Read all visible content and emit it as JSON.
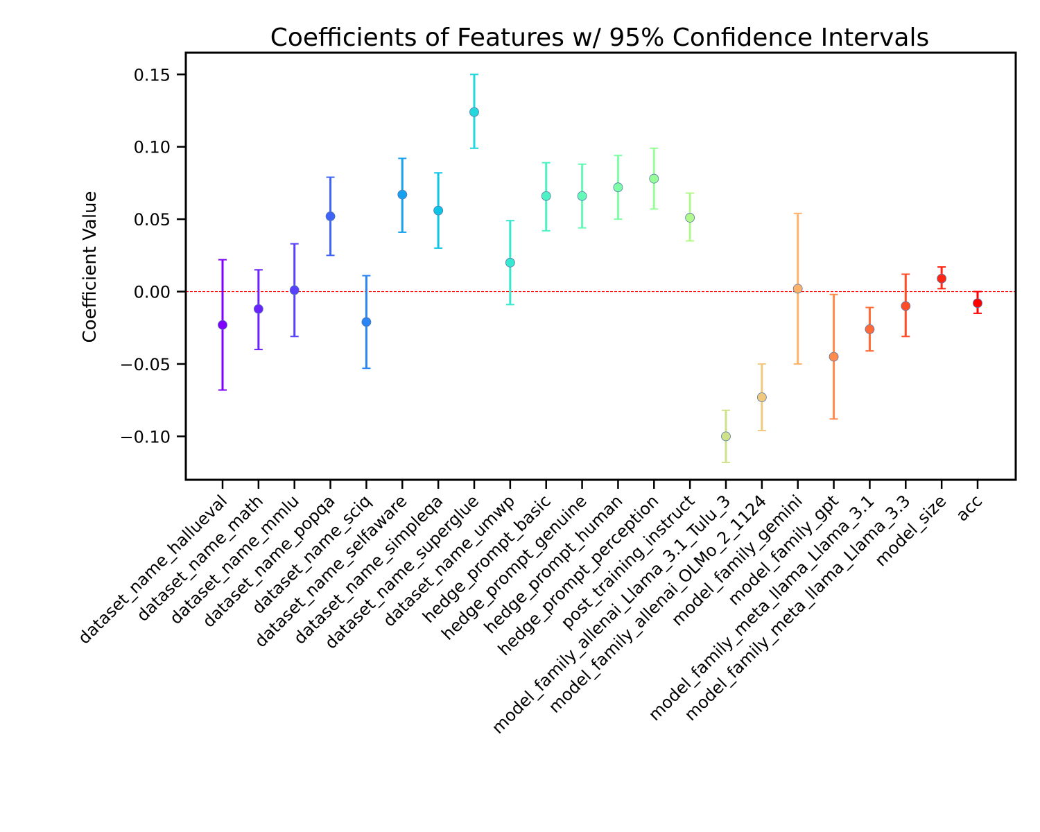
{
  "chart_data": {
    "type": "scatter",
    "title": "Coefficients of Features w/ 95% Confidence Intervals",
    "xlabel": "",
    "ylabel": "Coefficient Value",
    "ylim": [
      -0.13,
      0.165
    ],
    "yticks": [
      0.15,
      0.1,
      0.05,
      0.0,
      -0.05,
      -0.1
    ],
    "ytick_labels": [
      "0.15",
      "0.10",
      "0.05",
      "0.00",
      "−0.05",
      "−0.10"
    ],
    "reference_line": {
      "y": 0.0,
      "color": "#ff0000",
      "style": "dashed"
    },
    "grid": false,
    "points": [
      {
        "feature": "dataset_name_hallueval",
        "coef": -0.023,
        "ci_low": -0.068,
        "ci_high": 0.022,
        "color": "#7f00ff"
      },
      {
        "feature": "dataset_name_math",
        "coef": -0.012,
        "ci_low": -0.04,
        "ci_high": 0.015,
        "color": "#6a22fe"
      },
      {
        "feature": "dataset_name_mmlu",
        "coef": 0.001,
        "ci_low": -0.031,
        "ci_high": 0.033,
        "color": "#5641fd"
      },
      {
        "feature": "dataset_name_popqa",
        "coef": 0.052,
        "ci_low": 0.025,
        "ci_high": 0.079,
        "color": "#3f63f9"
      },
      {
        "feature": "dataset_name_sciq",
        "coef": -0.021,
        "ci_low": -0.053,
        "ci_high": 0.011,
        "color": "#2a84f4"
      },
      {
        "feature": "dataset_name_selfaware",
        "coef": 0.067,
        "ci_low": 0.041,
        "ci_high": 0.092,
        "color": "#16a1ee"
      },
      {
        "feature": "dataset_name_simpleqa",
        "coef": 0.056,
        "ci_low": 0.03,
        "ci_high": 0.082,
        "color": "#0cc4e6"
      },
      {
        "feature": "dataset_name_superglue",
        "coef": 0.124,
        "ci_low": 0.099,
        "ci_high": 0.15,
        "color": "#22d8dc"
      },
      {
        "feature": "dataset_name_umwp",
        "coef": 0.02,
        "ci_low": -0.009,
        "ci_high": 0.049,
        "color": "#37e8d0"
      },
      {
        "feature": "hedge_prompt_basic",
        "coef": 0.066,
        "ci_low": 0.042,
        "ci_high": 0.089,
        "color": "#4cf2c4"
      },
      {
        "feature": "hedge_prompt_genuine",
        "coef": 0.066,
        "ci_low": 0.044,
        "ci_high": 0.088,
        "color": "#64fab6"
      },
      {
        "feature": "hedge_prompt_human",
        "coef": 0.072,
        "ci_low": 0.05,
        "ci_high": 0.094,
        "color": "#7efea7"
      },
      {
        "feature": "hedge_prompt_perception",
        "coef": 0.078,
        "ci_low": 0.057,
        "ci_high": 0.099,
        "color": "#98fe98"
      },
      {
        "feature": "post_training_instruct",
        "coef": 0.051,
        "ci_low": 0.035,
        "ci_high": 0.068,
        "color": "#b2f88b"
      },
      {
        "feature": "model_family_allenai_Llama_3.1_Tulu_3",
        "coef": -0.1,
        "ci_low": -0.118,
        "ci_high": -0.082,
        "color": "#cfe189"
      },
      {
        "feature": "model_family_allenai_OLMo_2_1124",
        "coef": -0.073,
        "ci_low": -0.096,
        "ci_high": -0.05,
        "color": "#f0c97c"
      },
      {
        "feature": "model_family_gemini",
        "coef": 0.002,
        "ci_low": -0.05,
        "ci_high": 0.054,
        "color": "#ffb36a"
      },
      {
        "feature": "model_family_gpt",
        "coef": -0.045,
        "ci_low": -0.088,
        "ci_high": -0.002,
        "color": "#ff8a4c"
      },
      {
        "feature": "model_family_meta_llama_Llama_3.1",
        "coef": -0.026,
        "ci_low": -0.041,
        "ci_high": -0.011,
        "color": "#ff6a38"
      },
      {
        "feature": "model_family_meta_llama_Llama_3.3",
        "coef": -0.01,
        "ci_low": -0.031,
        "ci_high": 0.012,
        "color": "#ff4b26"
      },
      {
        "feature": "model_size",
        "coef": 0.009,
        "ci_low": 0.002,
        "ci_high": 0.017,
        "color": "#ff2513"
      },
      {
        "feature": "acc",
        "coef": -0.008,
        "ci_low": -0.015,
        "ci_high": 0.0,
        "color": "#ff0000"
      }
    ]
  }
}
